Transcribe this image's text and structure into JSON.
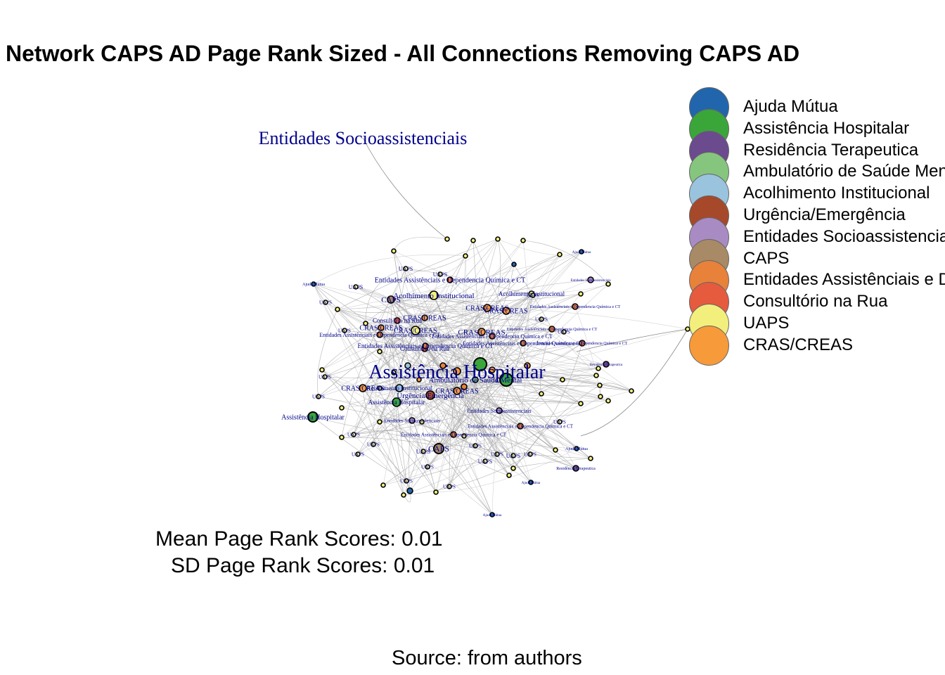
{
  "title": "Network CAPS AD Page Rank Sized - All Connections Removing CAPS AD",
  "legend": [
    {
      "label": "Ajuda Mútua",
      "color": "#2166ac"
    },
    {
      "label": "Assistência Hospitalar",
      "color": "#3aa63a"
    },
    {
      "label": "Residência Terapeutica",
      "color": "#6c4a8e"
    },
    {
      "label": "Ambulatório de Saúde Mental",
      "color": "#86c57e"
    },
    {
      "label": "Acolhimento Institucional",
      "color": "#9ac3dd"
    },
    {
      "label": "Urgência/Emergência",
      "color": "#a6492a"
    },
    {
      "label": "Entidades Socioassistenciais",
      "color": "#a98bc4"
    },
    {
      "label": "CAPS",
      "color": "#a88a66"
    },
    {
      "label": "Entidades Assistênciais e Dependencia Química e CT",
      "color": "#e8813a"
    },
    {
      "label": "Consultório na Rua",
      "color": "#e65a3e"
    },
    {
      "label": "UAPS",
      "color": "#f3ef7d"
    },
    {
      "label": "CRAS/CREAS",
      "color": "#f79a3a"
    }
  ],
  "node_labels": {
    "entidades_socio": "Entidades Socioassistenciais",
    "assistencia_hospitalar": "Assistência Hospitalar",
    "ambulatorio_saude_mental": "Ambulatório de Saúde Mental",
    "caps": "CAPS",
    "uaps": "UAPS",
    "cras_creas": "CRAS/CREAS",
    "ajuda_mutua": "Ajuda Mútua",
    "consultorio_rua": "Consultório na Rua",
    "urgencia": "Urgência/Emergência",
    "acolhimento": "Acolhimento Institucional",
    "entidades_dq": "Entidades Assistênciais e Dependencia Química e CT",
    "residencia": "Residência Terapeutica"
  },
  "stats": {
    "mean": "Mean Page Rank Scores: 0.01",
    "sd": "SD Page Rank Scores: 0.01"
  },
  "caption": "Source: from authors"
}
